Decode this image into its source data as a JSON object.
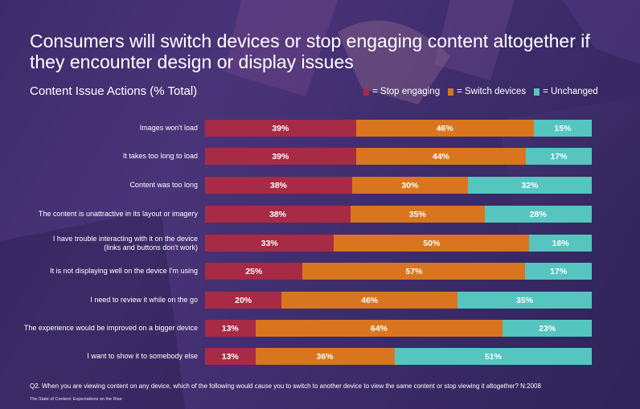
{
  "header": {
    "title": "Consumers will switch devices or stop engaging content altogether if they encounter design or display issues",
    "subtitle": "Content Issue Actions (% Total)"
  },
  "legend": [
    {
      "label": "= Stop engaging",
      "color": "#a72b45"
    },
    {
      "label": "= Switch devices",
      "color": "#d9751f"
    },
    {
      "label": "= Unchanged",
      "color": "#56c5c0"
    }
  ],
  "chart_data": {
    "type": "bar",
    "orientation": "horizontal",
    "stacked": true,
    "title": "Content Issue Actions (% Total)",
    "categories": [
      "Images won't load",
      "It takes too long to load",
      "Content was too long",
      "The content is unattractive in its layout or imagery",
      "I have trouble interacting with it on the device\n(links and buttons don't work)",
      "It is not displaying well on the device I'm using",
      "I need to review it while on the go",
      "The experience would be improved on a bigger device",
      "I want to show it to somebody else"
    ],
    "series": [
      {
        "name": "Stop engaging",
        "color": "#a72b45",
        "values": [
          39,
          39,
          38,
          38,
          33,
          25,
          20,
          13,
          13
        ]
      },
      {
        "name": "Switch devices",
        "color": "#d9751f",
        "values": [
          46,
          44,
          30,
          35,
          50,
          57,
          46,
          64,
          36
        ]
      },
      {
        "name": "Unchanged",
        "color": "#56c5c0",
        "values": [
          15,
          17,
          32,
          28,
          16,
          17,
          35,
          23,
          51
        ]
      }
    ],
    "value_suffix": "%",
    "legend_position": "top-right",
    "grid": false
  },
  "footnote": "Q2. When you are viewing content on any device, which of the following would cause you to switch to another device to view the same content or stop viewing it altogether? N:2008",
  "source": "The State of Content: Expectations on the Rise"
}
